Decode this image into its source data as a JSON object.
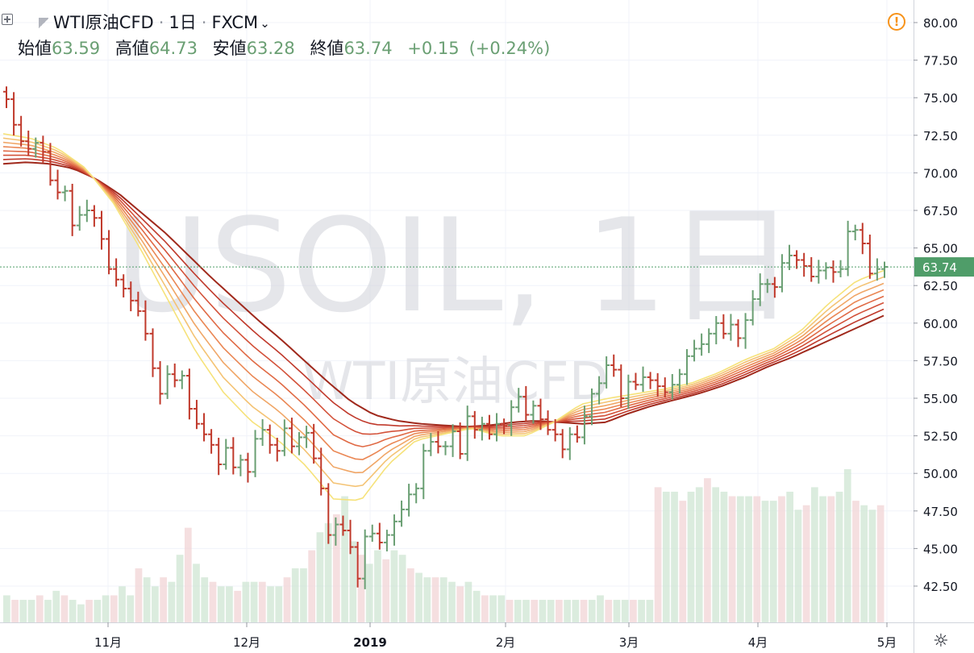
{
  "symbol": {
    "name": "WTI原油CFD",
    "interval": "1日",
    "exchange": "FXCM"
  },
  "ohlc": {
    "open_label": "始値",
    "open": "63.59",
    "high_label": "高値",
    "high": "64.73",
    "low_label": "安値",
    "low": "63.28",
    "close_label": "終値",
    "close": "63.74",
    "change": "+0.15",
    "change_pct": "(+0.24%)"
  },
  "watermark": {
    "main": "USOIL, 1日",
    "sub": "WTI原油CFD"
  },
  "price_badge": "63.74",
  "icons": {
    "alert": "alert-icon",
    "settings": "gear-icon",
    "add": "plus-box-icon",
    "flag": "flag-icon",
    "dropdown": "chevron-down-icon"
  },
  "colors": {
    "up": "#6a9f73",
    "down": "#c0392b",
    "badge": "#4f9d69",
    "ribbon_slow": "#a0291c",
    "ribbon_fast": "#f6e27a"
  },
  "chart_data": {
    "type": "ohlc",
    "y_axis": {
      "range": [
        41.0,
        81.0
      ],
      "ticks": [
        "80.00",
        "77.50",
        "75.00",
        "72.50",
        "70.00",
        "67.50",
        "65.00",
        "62.50",
        "60.00",
        "57.50",
        "55.00",
        "52.50",
        "50.00",
        "47.50",
        "45.00",
        "42.50"
      ]
    },
    "x_axis": {
      "labels": [
        "11月",
        "12月",
        "2019",
        "2月",
        "3月",
        "4月",
        "5月"
      ]
    },
    "grid": true,
    "last_price": 63.74,
    "price_series": [
      74.9,
      73.2,
      72.1,
      71.6,
      72.0,
      71.4,
      69.5,
      68.7,
      68.8,
      66.5,
      67.2,
      67.5,
      67.0,
      65.6,
      63.6,
      62.9,
      62.3,
      61.5,
      60.8,
      59.3,
      57.0,
      55.3,
      56.6,
      56.2,
      56.5,
      54.3,
      53.3,
      52.6,
      51.9,
      50.6,
      51.7,
      50.4,
      50.9,
      50.1,
      52.3,
      52.9,
      51.9,
      51.5,
      53.0,
      51.8,
      52.4,
      52.7,
      51.0,
      49.0,
      45.9,
      46.6,
      46.2,
      45.1,
      43.0,
      45.8,
      46.0,
      45.4,
      45.9,
      46.8,
      47.6,
      48.6,
      49.0,
      51.5,
      52.1,
      51.8,
      51.8,
      52.8,
      51.3,
      53.8,
      52.9,
      53.3,
      52.6,
      53.3,
      53.2,
      54.4,
      55.1,
      53.9,
      54.5,
      53.6,
      52.9,
      52.6,
      51.6,
      52.6,
      52.4,
      53.8,
      55.3,
      56.0,
      57.2,
      56.9,
      55.0,
      56.1,
      55.9,
      56.4,
      56.2,
      55.8,
      55.4,
      55.9,
      56.6,
      57.8,
      58.3,
      58.6,
      59.3,
      60.0,
      59.3,
      59.9,
      59.0,
      60.2,
      61.6,
      62.6,
      62.6,
      62.4,
      64.0,
      64.5,
      64.2,
      63.8,
      63.1,
      63.5,
      63.7,
      63.4,
      63.6,
      66.1,
      66.2,
      65.3,
      63.3,
      63.6,
      63.74
    ],
    "ribbon": {
      "lines": 8,
      "slowest_ma": [
        70.6,
        70.7,
        70.6,
        70.3,
        69.6,
        68.6,
        67.3,
        66.0,
        64.5,
        63.0,
        61.6,
        60.2,
        58.9,
        57.5,
        56.1,
        54.8,
        53.9,
        53.5,
        53.3,
        53.2,
        53.1,
        53.2,
        53.4,
        53.5,
        53.4,
        53.3,
        53.4,
        54.0,
        54.5,
        54.9,
        55.3,
        55.8,
        56.4,
        57.1,
        57.7,
        58.4,
        59.1,
        59.8,
        60.5
      ],
      "fastest_ma": [
        72.6,
        72.3,
        71.6,
        70.3,
        68.0,
        64.9,
        61.5,
        58.1,
        55.4,
        53.5,
        52.2,
        50.5,
        48.3,
        48.2,
        50.6,
        52.2,
        52.6,
        53.0,
        52.5,
        52.5,
        53.4,
        54.6,
        55.0,
        55.3,
        55.6,
        56.0,
        56.7,
        57.6,
        58.3,
        59.5,
        61.3,
        62.8,
        63.5
      ]
    },
    "volume": [
      6,
      5,
      5,
      5,
      6,
      5,
      7,
      6,
      5,
      4,
      5,
      5,
      6,
      6,
      8,
      6,
      12,
      10,
      8,
      10,
      9,
      15,
      21,
      13,
      10,
      9,
      8,
      8,
      7,
      9,
      9,
      9,
      8,
      8,
      10,
      12,
      12,
      16,
      20,
      22,
      24,
      28,
      18,
      15,
      13,
      16,
      14,
      16,
      15,
      12,
      11,
      10,
      10,
      10,
      9,
      8,
      9,
      7,
      6,
      6,
      6,
      5,
      5,
      5,
      5,
      5,
      5,
      5,
      5,
      5,
      5,
      5,
      6,
      5,
      5,
      5,
      5,
      5,
      5,
      30,
      29,
      29,
      27,
      29,
      30,
      32,
      30,
      29,
      28,
      28,
      28,
      28,
      27,
      27,
      28,
      29,
      25,
      26,
      30,
      28,
      28,
      29,
      34,
      27,
      26,
      25,
      26
    ]
  }
}
